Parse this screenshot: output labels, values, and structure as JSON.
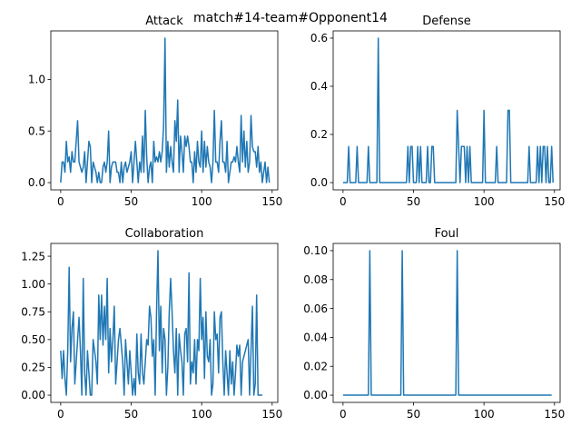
{
  "suptitle": "match#14-team#Opponent14",
  "series_color": "#1f77b4",
  "chart_data": [
    {
      "type": "line",
      "title": "Attack",
      "xlim": [
        -7,
        154
      ],
      "ylim": [
        -0.07,
        1.47
      ],
      "xticks": [
        0,
        50,
        100,
        150
      ],
      "yticks": [
        0.0,
        0.5,
        1.0
      ],
      "ytick_labels": [
        "0.0",
        "0.5",
        "1.0"
      ],
      "x_start": 0,
      "values": [
        0.0,
        0.2,
        0.2,
        0.1,
        0.4,
        0.2,
        0.25,
        0.1,
        0.3,
        0.2,
        0.2,
        0.4,
        0.6,
        0.2,
        0.15,
        0.1,
        0.15,
        0.3,
        0.0,
        0.2,
        0.4,
        0.35,
        0.0,
        0.2,
        0.15,
        0.1,
        0.0,
        0.1,
        0.0,
        0.0,
        0.15,
        0.2,
        0.1,
        0.2,
        0.5,
        0.0,
        0.15,
        0.2,
        0.2,
        0.2,
        0.1,
        0.1,
        0.0,
        0.2,
        0.0,
        0.15,
        0.2,
        0.1,
        0.15,
        0.2,
        0.3,
        0.0,
        0.2,
        0.4,
        0.2,
        0.0,
        0.2,
        0.1,
        0.45,
        0.1,
        0.7,
        0.25,
        0.0,
        0.15,
        0.2,
        0.0,
        0.4,
        0.2,
        0.25,
        0.2,
        0.3,
        0.2,
        0.3,
        0.55,
        1.4,
        0.1,
        0.4,
        0.15,
        0.35,
        0.2,
        0.1,
        0.6,
        0.4,
        0.8,
        0.1,
        0.45,
        0.3,
        0.1,
        0.45,
        0.35,
        0.45,
        0.35,
        0.2,
        0.2,
        0.0,
        0.3,
        0.1,
        0.4,
        0.2,
        0.15,
        0.5,
        0.1,
        0.4,
        0.15,
        0.35,
        0.2,
        0.15,
        0.0,
        0.2,
        0.7,
        0.2,
        0.2,
        0.1,
        0.4,
        0.6,
        0.2,
        0.2,
        0.1,
        0.4,
        0.0,
        0.1,
        0.2,
        0.2,
        0.25,
        0.2,
        0.35,
        0.2,
        0.1,
        0.65,
        0.2,
        0.5,
        0.15,
        0.4,
        0.1,
        0.2,
        0.65,
        0.35,
        0.3,
        0.3,
        0.15,
        0.35,
        0.1,
        0.2,
        0.0,
        0.1,
        0.2,
        0.0,
        0.15,
        0.0
      ]
    },
    {
      "type": "line",
      "title": "Defense",
      "xlim": [
        -7,
        154
      ],
      "ylim": [
        -0.03,
        0.63
      ],
      "xticks": [
        0,
        50,
        100,
        150
      ],
      "yticks": [
        0.0,
        0.2,
        0.4,
        0.6
      ],
      "ytick_labels": [
        "0.0",
        "0.2",
        "0.4",
        "0.6"
      ],
      "x_start": 0,
      "values": [
        0,
        0,
        0,
        0,
        0.15,
        0,
        0,
        0,
        0,
        0,
        0.15,
        0,
        0,
        0,
        0,
        0,
        0,
        0,
        0.15,
        0,
        0,
        0,
        0,
        0,
        0,
        0.6,
        0,
        0,
        0,
        0,
        0,
        0,
        0,
        0,
        0,
        0,
        0,
        0,
        0,
        0,
        0,
        0,
        0,
        0,
        0,
        0,
        0.15,
        0,
        0.15,
        0.15,
        0,
        0,
        0,
        0.15,
        0,
        0.15,
        0,
        0,
        0,
        0,
        0.15,
        0,
        0,
        0.15,
        0.15,
        0,
        0,
        0,
        0,
        0,
        0,
        0,
        0,
        0,
        0,
        0,
        0,
        0,
        0,
        0,
        0,
        0.3,
        0.15,
        0,
        0.15,
        0.15,
        0.15,
        0,
        0.15,
        0,
        0.15,
        0,
        0,
        0,
        0,
        0,
        0,
        0,
        0,
        0,
        0.3,
        0,
        0,
        0,
        0,
        0,
        0,
        0,
        0,
        0.15,
        0,
        0,
        0,
        0,
        0,
        0,
        0,
        0.3,
        0.3,
        0,
        0,
        0,
        0,
        0,
        0,
        0,
        0,
        0,
        0,
        0,
        0,
        0,
        0.15,
        0,
        0,
        0,
        0,
        0,
        0.15,
        0,
        0.15,
        0,
        0.15,
        0.15,
        0,
        0.15,
        0,
        0,
        0.15,
        0
      ]
    },
    {
      "type": "line",
      "title": "Collaboration",
      "xlim": [
        -7,
        154
      ],
      "ylim": [
        -0.065,
        1.365
      ],
      "xticks": [
        0,
        50,
        100,
        150
      ],
      "yticks": [
        0.0,
        0.25,
        0.5,
        0.75,
        1.0,
        1.25
      ],
      "ytick_labels": [
        "0.00",
        "0.25",
        "0.50",
        "0.75",
        "1.00",
        "1.25"
      ],
      "x_start": 0,
      "values": [
        0.4,
        0.15,
        0.4,
        0.15,
        0.0,
        0.4,
        1.15,
        0.3,
        0.6,
        0.75,
        0.1,
        0.3,
        0.5,
        0.7,
        0.4,
        0.0,
        1.05,
        0.2,
        0.0,
        0.4,
        0.2,
        0.0,
        0.0,
        0.5,
        0.4,
        0.3,
        0.1,
        0.9,
        0.5,
        0.9,
        0.45,
        0.8,
        0.5,
        1.05,
        0.2,
        0.6,
        0.3,
        0.5,
        0.8,
        0.1,
        0.3,
        0.5,
        0.6,
        0.45,
        0.3,
        0.0,
        0.5,
        0.3,
        0.1,
        0.4,
        0.2,
        0.0,
        0.15,
        0.0,
        0.55,
        0.2,
        0.1,
        0.55,
        0.2,
        0.1,
        0.3,
        0.5,
        0.45,
        0.8,
        0.7,
        0.35,
        0.5,
        0.0,
        0.75,
        1.3,
        0.4,
        0.8,
        0.2,
        0.6,
        0.5,
        0.0,
        0.25,
        0.75,
        1.05,
        0.75,
        0.4,
        0.2,
        0.6,
        0.0,
        0.55,
        0.4,
        0.3,
        0.0,
        0.55,
        0.6,
        0.3,
        1.1,
        0.1,
        0.3,
        0.2,
        0.5,
        0.1,
        0.5,
        0.4,
        1.05,
        0.5,
        0.7,
        0.15,
        0.75,
        0.35,
        0.3,
        0.5,
        0.0,
        0.1,
        0.75,
        0.5,
        0.55,
        0.2,
        0.7,
        0.75,
        0.3,
        0.0,
        0.4,
        0.2,
        0.0,
        0.4,
        0.1,
        0.3,
        0.0,
        0.2,
        0.45,
        0.35,
        0.45,
        0.0,
        0.3,
        0.35,
        0.4,
        0.45,
        0.5,
        0.0,
        0.4,
        0.8,
        0.0,
        0.1,
        0.9,
        0.0,
        0.0,
        0.0,
        0.0
      ]
    },
    {
      "type": "line",
      "title": "Foul",
      "xlim": [
        -7,
        154
      ],
      "ylim": [
        -0.005,
        0.105
      ],
      "xticks": [
        0,
        50,
        100,
        150
      ],
      "yticks": [
        0.0,
        0.02,
        0.04,
        0.06,
        0.08,
        0.1
      ],
      "ytick_labels": [
        "0.00",
        "0.02",
        "0.04",
        "0.06",
        "0.08",
        "0.10"
      ],
      "x_start": 0,
      "values": [
        0,
        0,
        0,
        0,
        0,
        0,
        0,
        0,
        0,
        0,
        0,
        0,
        0,
        0,
        0,
        0,
        0,
        0,
        0,
        0.1,
        0,
        0,
        0,
        0,
        0,
        0,
        0,
        0,
        0,
        0,
        0,
        0,
        0,
        0,
        0,
        0,
        0,
        0,
        0,
        0,
        0,
        0,
        0.1,
        0,
        0,
        0,
        0,
        0,
        0,
        0,
        0,
        0,
        0,
        0,
        0,
        0,
        0,
        0,
        0,
        0,
        0,
        0,
        0,
        0,
        0,
        0,
        0,
        0,
        0,
        0,
        0,
        0,
        0,
        0,
        0,
        0,
        0,
        0,
        0,
        0,
        0,
        0.1,
        0,
        0,
        0,
        0,
        0,
        0,
        0,
        0,
        0,
        0,
        0,
        0,
        0,
        0,
        0,
        0,
        0,
        0,
        0,
        0,
        0,
        0,
        0,
        0,
        0,
        0,
        0,
        0,
        0,
        0,
        0,
        0,
        0,
        0,
        0,
        0,
        0,
        0,
        0,
        0,
        0,
        0,
        0,
        0,
        0,
        0,
        0,
        0,
        0,
        0,
        0,
        0,
        0,
        0,
        0,
        0,
        0,
        0,
        0,
        0,
        0,
        0,
        0,
        0,
        0,
        0,
        0
      ]
    }
  ]
}
